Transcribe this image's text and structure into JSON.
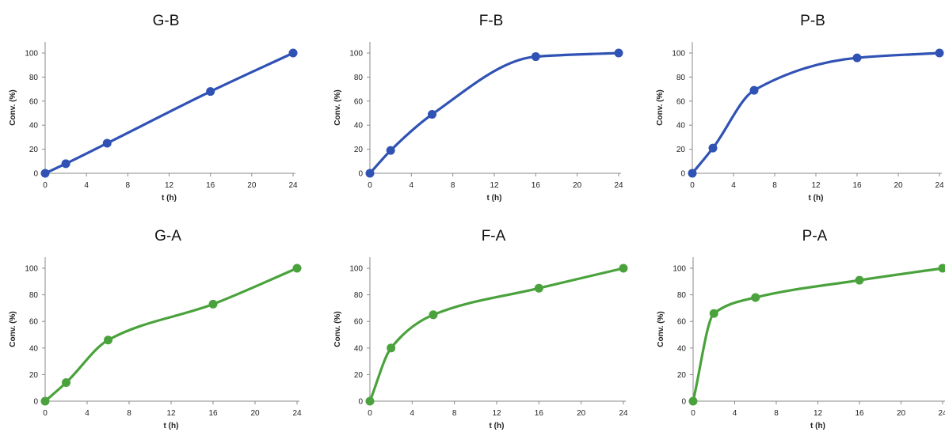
{
  "chart_data": [
    {
      "type": "line",
      "title": "G-B",
      "xlabel": "t (h)",
      "ylabel": "Conv. (%)",
      "xlim": [
        0,
        24
      ],
      "ylim": [
        0,
        100
      ],
      "xticks": [
        0,
        4,
        8,
        12,
        16,
        20,
        24
      ],
      "yticks": [
        0,
        20,
        40,
        60,
        80,
        100
      ],
      "grid": false,
      "color": "#2f52b4",
      "x": [
        0,
        2,
        6,
        16,
        24
      ],
      "values": [
        0,
        8,
        25,
        68,
        100
      ]
    },
    {
      "type": "line",
      "title": "F-B",
      "xlabel": "t (h)",
      "ylabel": "Conv. (%)",
      "xlim": [
        0,
        24
      ],
      "ylim": [
        0,
        100
      ],
      "xticks": [
        0,
        4,
        8,
        12,
        16,
        20,
        24
      ],
      "yticks": [
        0,
        20,
        40,
        60,
        80,
        100
      ],
      "grid": false,
      "color": "#2f52b4",
      "x": [
        0,
        2,
        6,
        16,
        24
      ],
      "values": [
        0,
        19,
        49,
        97,
        100
      ]
    },
    {
      "type": "line",
      "title": "P-B",
      "xlabel": "t (h)",
      "ylabel": "Conv. (%)",
      "xlim": [
        0,
        24
      ],
      "ylim": [
        0,
        100
      ],
      "xticks": [
        0,
        4,
        8,
        12,
        16,
        20,
        24
      ],
      "yticks": [
        0,
        20,
        40,
        60,
        80,
        100
      ],
      "grid": false,
      "color": "#2f52b4",
      "x": [
        0,
        2,
        6,
        16,
        24
      ],
      "values": [
        0,
        21,
        69,
        96,
        100
      ]
    },
    {
      "type": "line",
      "title": "G-A",
      "xlabel": "t (h)",
      "ylabel": "Conv. (%)",
      "xlim": [
        0,
        24
      ],
      "ylim": [
        0,
        100
      ],
      "xticks": [
        0,
        4,
        8,
        12,
        16,
        20,
        24
      ],
      "yticks": [
        0,
        20,
        40,
        60,
        80,
        100
      ],
      "grid": false,
      "color": "#4aa23c",
      "x": [
        0,
        2,
        6,
        16,
        24
      ],
      "values": [
        0,
        14,
        46,
        73,
        100
      ]
    },
    {
      "type": "line",
      "title": "F-A",
      "xlabel": "t (h)",
      "ylabel": "Conv. (%)",
      "xlim": [
        0,
        24
      ],
      "ylim": [
        0,
        100
      ],
      "xticks": [
        0,
        4,
        8,
        12,
        16,
        20,
        24
      ],
      "yticks": [
        0,
        20,
        40,
        60,
        80,
        100
      ],
      "grid": false,
      "color": "#4aa23c",
      "x": [
        0,
        2,
        6,
        16,
        24
      ],
      "values": [
        0,
        40,
        65,
        85,
        100
      ]
    },
    {
      "type": "line",
      "title": "P-A",
      "xlabel": "t (h)",
      "ylabel": "Conv. (%)",
      "xlim": [
        0,
        24
      ],
      "ylim": [
        0,
        100
      ],
      "xticks": [
        0,
        4,
        8,
        12,
        16,
        20,
        24
      ],
      "yticks": [
        0,
        20,
        40,
        60,
        80,
        100
      ],
      "grid": false,
      "color": "#4aa23c",
      "x": [
        0,
        2,
        6,
        16,
        24
      ],
      "values": [
        0,
        66,
        78,
        91,
        100
      ]
    }
  ]
}
